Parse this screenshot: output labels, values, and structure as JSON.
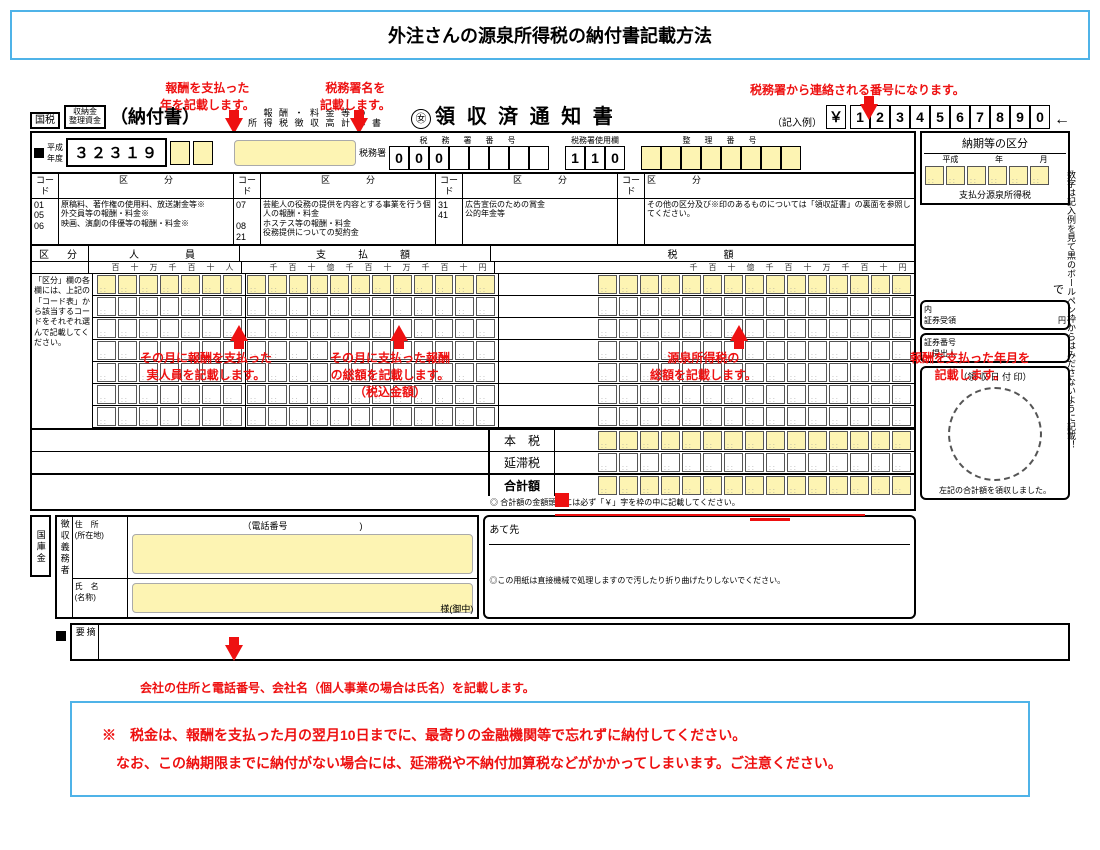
{
  "title": "外注さんの源泉所得税の納付書記載方法",
  "labels": {
    "year": "報酬を支払った\n年を記載します。",
    "office": "税務署名を\n記載します。",
    "seiri": "税務署から連絡される番号になります。",
    "jinin": "その月に報酬を支払った\n実人員を記載します。",
    "shiharai": "その月に支払った報酬\nの総額を記載します。\n（税込金額）",
    "zeigaku": "源泉所得税の\n総額を記載します。",
    "nouki": "報酬を支払った年月を\n記載します。",
    "addr": "会社の住所と電話番号、会社名（個人事業の場合は氏名）を記載します。"
  },
  "top": {
    "kokuzei": "国税",
    "shunokin": "収納金\n整理資金",
    "nofusho": "（納付書）",
    "sub1": "報 酬 ・ 料 金 等 の",
    "sub2": "所 得 税 徴 収 高 計 算 書",
    "maru": "㊛",
    "ryoshu": "領 収 済 通 知 書",
    "kinyurei": "（記入例）",
    "yen": "￥",
    "example_digits": [
      "1",
      "2",
      "3",
      "4",
      "5",
      "6",
      "7",
      "8",
      "9",
      "0"
    ],
    "code_32319": "３２３１９",
    "nendo": "年度",
    "heisei": "平成",
    "zeimusho": "税務署",
    "zeimushobango_h": "税　務　署　番　号",
    "office_digits": [
      "0",
      "0",
      "0"
    ],
    "shiyoran": "税務署使用欄",
    "shiyo_digits": [
      "1",
      "1",
      "0"
    ],
    "seiribango_h": "整　理　番　号"
  },
  "codes": {
    "h_code": "コー\nド",
    "h_kubun": "区　　　　分",
    "r01": "01",
    "t01": "原稿料、著作権の使用料、放送謝金等※",
    "r05": "05",
    "t05": "外交員等の報酬・料金※",
    "r06": "06",
    "t06": "映画、演劇の俳優等の報酬・料金※",
    "r07": "07",
    "t07": "芸能人の役務の提供を内容とする事業を行う個人の報酬・料金",
    "r08": "08",
    "t08": "ホステス等の報酬・料金",
    "r21": "21",
    "t21": "役務提供についての契約金",
    "r31": "31",
    "t31": "広告宣伝のための賞金",
    "r41": "41",
    "t41": "公的年金等",
    "note_right": "その他の区分及び※印のあるものについては「領収証書」の裏面を参照してください。"
  },
  "grid": {
    "h_kubun": "区　分",
    "h_jinin": "人　　　員",
    "h_shiharai": "支　　払　　額",
    "h_zeigaku": "税　　　額",
    "side_note": "「区分」欄の各欄には、上記の「コード表」から該当するコードをそれぞれ選んで記載してください。",
    "units_small": [
      "百",
      "十",
      "万",
      "千",
      "百",
      "十",
      "人"
    ],
    "units_money": [
      "千",
      "百",
      "十",
      "億",
      "千",
      "百",
      "十",
      "万",
      "千",
      "百",
      "十",
      "円"
    ],
    "honzei": "本　税",
    "entai": "延滞税",
    "gokei": "合計額",
    "gokei_note": "◎ 合計額の金額頭部には必ず「￥」字を枠の中に記載してください。"
  },
  "right": {
    "nouki_h": "納期等の区分",
    "heisei": "平成",
    "year": "年",
    "month": "月",
    "shiharaibun": "支払分源泉所得税",
    "de": "で",
    "nai": "内",
    "shoken": "証券受領",
    "en": "円",
    "shokenbango": "証券番号\n　提出人",
    "ryoshubi": "（領 収 日 付 印）",
    "left_note": "左記の合計額を領収しました。",
    "vnote": "数字は記入例を見て黒のボールペン枠からはみださないように記載！"
  },
  "addr": {
    "jusho_h": "住　所\n(所在地)",
    "tel": "（電話番号",
    "shimei_h": "氏　名\n(名称)",
    "samachu": "様(御中)",
    "tekiyo": "摘\n要",
    "kokko": "国\n庫\n金",
    "chosyu": "徴\n収\n義\n務\n者",
    "atesaki": "あて先",
    "machine_note": "◎この用紙は直接機械で処理しますので汚したり折り曲げたりしないでください。"
  },
  "notes": {
    "l1": "※　税金は、報酬を支払った月の翌月10日までに、最寄りの金融機関等で忘れずに納付してください。",
    "l2": "　なお、この納期限までに納付がない場合には、延滞税や不納付加算税などがかかってしまいます。ご注意ください。"
  },
  "colors": {
    "red": "#e11",
    "highlight": "#fdf4b3",
    "border_blue": "#4fb3e8"
  }
}
